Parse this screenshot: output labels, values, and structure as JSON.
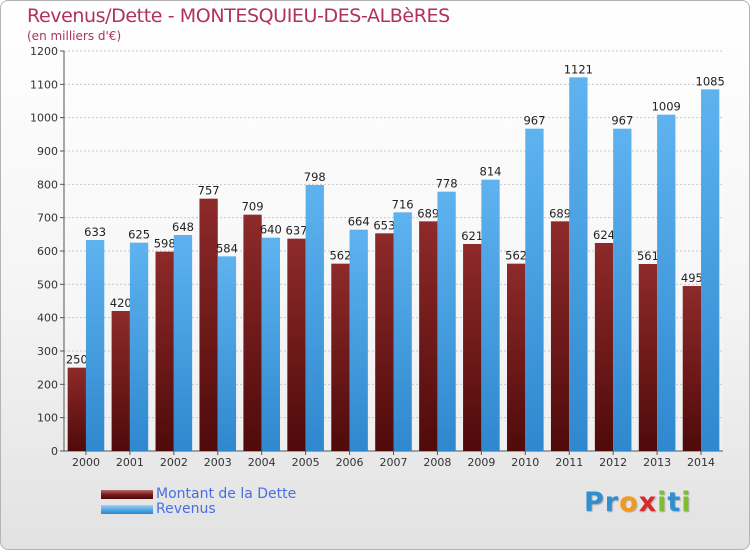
{
  "header": {
    "title": "Revenus/Dette - MONTESQUIEU-DES-ALBèRES",
    "subtitle": "(en milliers d'€)"
  },
  "legend": {
    "items": [
      {
        "label": "Montant de la Dette",
        "color": "#7b1a1a"
      },
      {
        "label": "Revenus",
        "color": "#4aa3e6"
      }
    ]
  },
  "logo": {
    "letters": [
      {
        "char": "P",
        "color": "#2f8fd0"
      },
      {
        "char": "r",
        "color": "#2f8fd0"
      },
      {
        "char": "o",
        "color": "#f39a1e"
      },
      {
        "char": "x",
        "color": "#d62b2b"
      },
      {
        "char": "i",
        "color": "#7bbf2a"
      },
      {
        "char": "t",
        "color": "#2f8fd0"
      },
      {
        "char": "i",
        "color": "#7bbf2a"
      }
    ]
  },
  "chart_data": {
    "type": "bar",
    "title": "Revenus/Dette - MONTESQUIEU-DES-ALBèRES",
    "subtitle": "(en milliers d'€)",
    "categories": [
      "2000",
      "2001",
      "2002",
      "2003",
      "2004",
      "2005",
      "2006",
      "2007",
      "2008",
      "2009",
      "2010",
      "2011",
      "2012",
      "2013",
      "2014"
    ],
    "series": [
      {
        "name": "Montant de la Dette",
        "color": "#7b1a1a",
        "values": [
          250,
          420,
          598,
          757,
          709,
          637,
          562,
          653,
          689,
          621,
          562,
          689,
          624,
          561,
          495
        ]
      },
      {
        "name": "Revenus",
        "color": "#4aa3e6",
        "values": [
          633,
          625,
          648,
          584,
          640,
          798,
          664,
          716,
          778,
          814,
          967,
          1121,
          967,
          1009,
          1085
        ]
      }
    ],
    "ylim": [
      0,
      1200
    ],
    "yticks": [
      0,
      100,
      200,
      300,
      400,
      500,
      600,
      700,
      800,
      900,
      1000,
      1100,
      1200
    ],
    "grid": true,
    "legend_position": "bottom-left"
  }
}
